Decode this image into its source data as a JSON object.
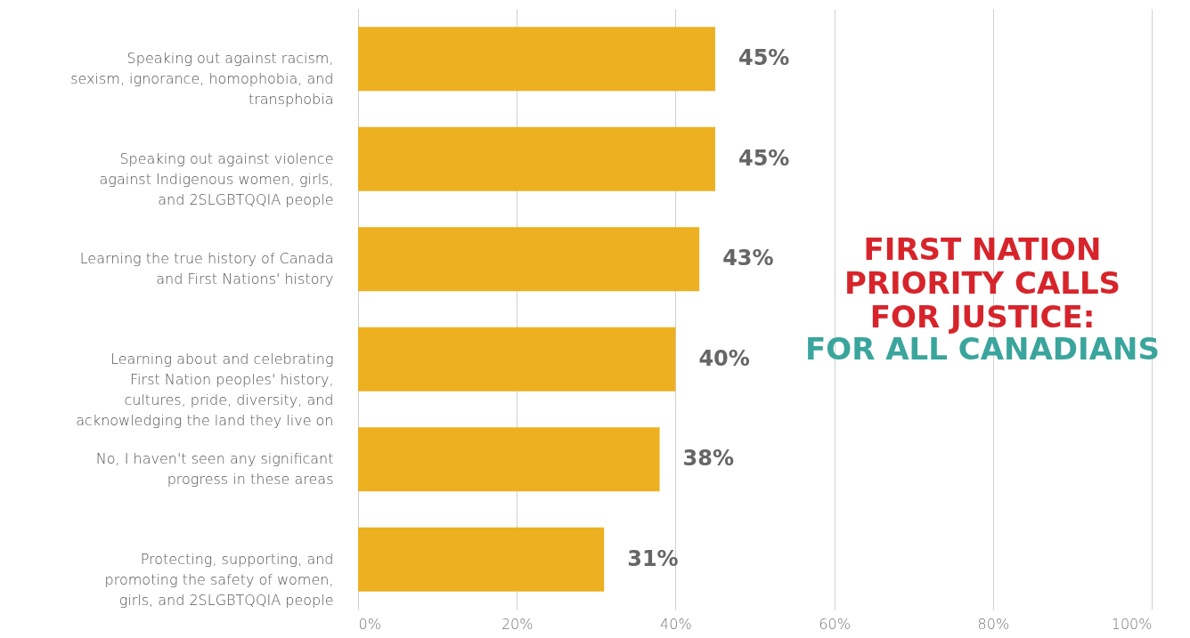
{
  "chart_data": {
    "type": "bar",
    "orientation": "horizontal",
    "title": "FIRST NATION PRIORITY CALLS FOR JUSTICE:",
    "subtitle": "FOR ALL CANADIANS",
    "categories": [
      "Speaking out against racism, sexism, ignorance, homophobia, and transphobia",
      "Speaking out against violence against Indigenous women, girls, and 2SLGBTQQIA people",
      "Learning the true history of Canada and First Nations' history",
      "Learning about and celebrating First Nation peoples' history, cultures, pride, diversity, and acknowledging the land they live on",
      "No, I haven't seen any significant progress in these areas",
      "Protecting, supporting, and promoting the safety of women, girls, and 2SLGBTQQIA people"
    ],
    "values": [
      45,
      45,
      43,
      40,
      38,
      31
    ],
    "value_labels": [
      "45%",
      "45%",
      "43%",
      "40%",
      "38%",
      "31%"
    ],
    "color": "#ecb021",
    "xlim": [
      0,
      100
    ],
    "xticks": [
      {
        "value": 0,
        "label": "0%"
      },
      {
        "value": 20,
        "label": "20%"
      },
      {
        "value": 40,
        "label": "40%"
      },
      {
        "value": 60,
        "label": "60%"
      },
      {
        "value": 80,
        "label": "80%"
      },
      {
        "value": 100,
        "label": "100%"
      }
    ],
    "grid": "x"
  }
}
